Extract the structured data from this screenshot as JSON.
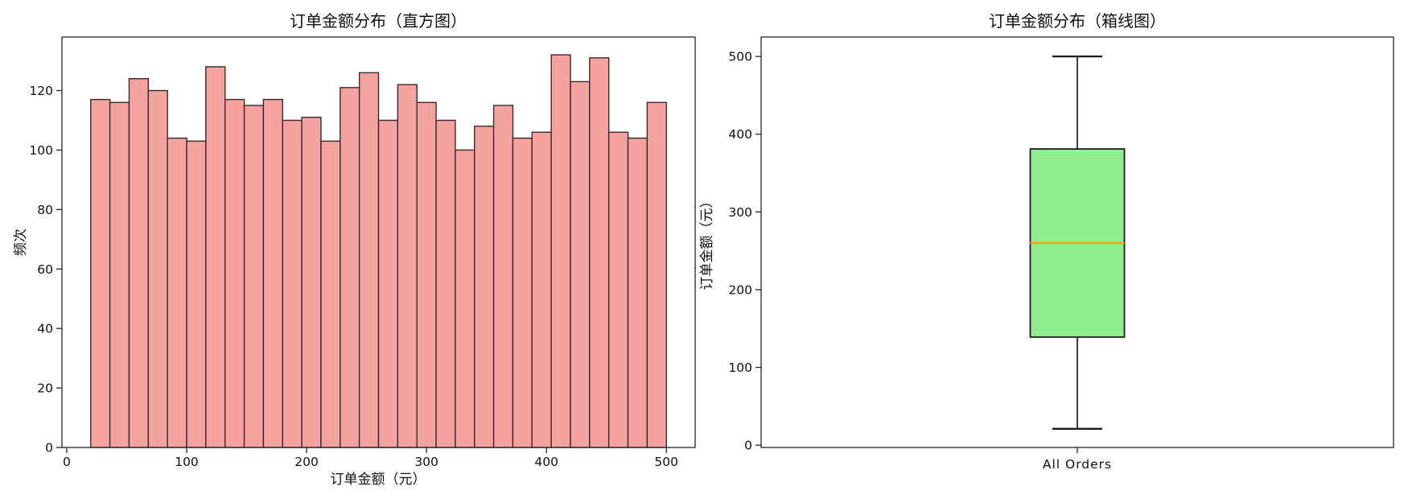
{
  "figure": {
    "background": "#ffffff",
    "spine_color": "#262626",
    "tick_color": "#262626"
  },
  "chart_data": [
    {
      "type": "bar",
      "variant": "histogram",
      "title": "订单金额分布（直方图）",
      "xlabel": "订单金额（元）",
      "ylabel": "频次",
      "bins": {
        "start": 20,
        "width": 16,
        "count": 30,
        "range": [
          20,
          500
        ]
      },
      "counts": [
        117,
        116,
        124,
        120,
        104,
        103,
        128,
        117,
        115,
        117,
        110,
        111,
        103,
        121,
        126,
        110,
        122,
        116,
        110,
        100,
        108,
        115,
        104,
        106,
        132,
        123,
        131,
        106,
        104,
        116
      ],
      "xticks": [
        0,
        100,
        200,
        300,
        400,
        500
      ],
      "yticks": [
        0,
        20,
        40,
        60,
        80,
        100,
        120
      ],
      "xlim": [
        -4,
        524
      ],
      "ylim": [
        0,
        138
      ],
      "grid": false,
      "legend": null,
      "colors": {
        "fill": "#f4a3a1",
        "edge": "#3d2929"
      }
    },
    {
      "type": "box",
      "variant": "boxplot",
      "title": "订单金额分布（箱线图）",
      "xlabel": "",
      "ylabel": "订单金额（元）",
      "categories": [
        "All Orders"
      ],
      "stats": {
        "whisker_low": 21,
        "q1": 139,
        "median": 260,
        "q3": 381,
        "whisker_high": 500
      },
      "yticks": [
        0,
        100,
        200,
        300,
        400,
        500
      ],
      "ylim": [
        -3,
        525
      ],
      "grid": false,
      "legend": null,
      "colors": {
        "fill": "#90ee90",
        "median": "#ffa500",
        "line": "#1c1c1c"
      }
    }
  ]
}
